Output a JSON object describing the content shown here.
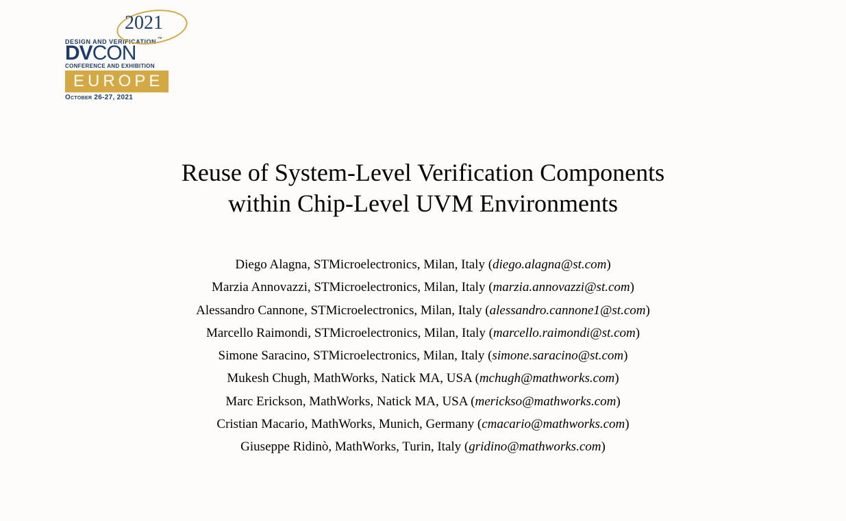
{
  "logo": {
    "year": "2021",
    "tagline1": "DESIGN AND VERIFICATION",
    "brand_dv": "DV",
    "brand_con": "CON",
    "tagline2": "CONFERENCE AND EXHIBITION",
    "region": "EUROPE",
    "date": "October 26-27, 2021"
  },
  "title": {
    "line1": "Reuse of System-Level Verification Components",
    "line2": "within Chip-Level UVM Environments"
  },
  "authors": [
    {
      "name": "Diego Alagna",
      "affiliation": "STMicroelectronics, Milan, Italy",
      "email": "diego.alagna@st.com"
    },
    {
      "name": "Marzia Annovazzi",
      "affiliation": "STMicroelectronics, Milan, Italy",
      "email": "marzia.annovazzi@st.com"
    },
    {
      "name": "Alessandro Cannone",
      "affiliation": "STMicroelectronics, Milan, Italy",
      "email": "alessandro.cannone1@st.com"
    },
    {
      "name": "Marcello Raimondi",
      "affiliation": "STMicroelectronics, Milan, Italy",
      "email": "marcello.raimondi@st.com"
    },
    {
      "name": "Simone Saracino",
      "affiliation": "STMicroelectronics, Milan, Italy",
      "email": "simone.saracino@st.com"
    },
    {
      "name": "Mukesh Chugh",
      "affiliation": "MathWorks, Natick MA, USA",
      "email": "mchugh@mathworks.com"
    },
    {
      "name": "Marc Erickson",
      "affiliation": "MathWorks, Natick MA, USA",
      "email": "merickso@mathworks.com"
    },
    {
      "name": "Cristian Macario",
      "affiliation": "MathWorks, Munich, Germany",
      "email": "cmacario@mathworks.com"
    },
    {
      "name": "Giuseppe Ridinò",
      "affiliation": "MathWorks, Turin, Italy",
      "email": "gridino@mathworks.com"
    }
  ],
  "colors": {
    "background": "#fdfcfa",
    "text": "#000000",
    "logo_blue": "#1a3d6d",
    "logo_gold": "#d4a843",
    "logo_white": "#ffffff"
  },
  "typography": {
    "title_fontsize": 36,
    "author_fontsize": 19,
    "title_font": "Times New Roman",
    "author_font": "Times New Roman"
  }
}
